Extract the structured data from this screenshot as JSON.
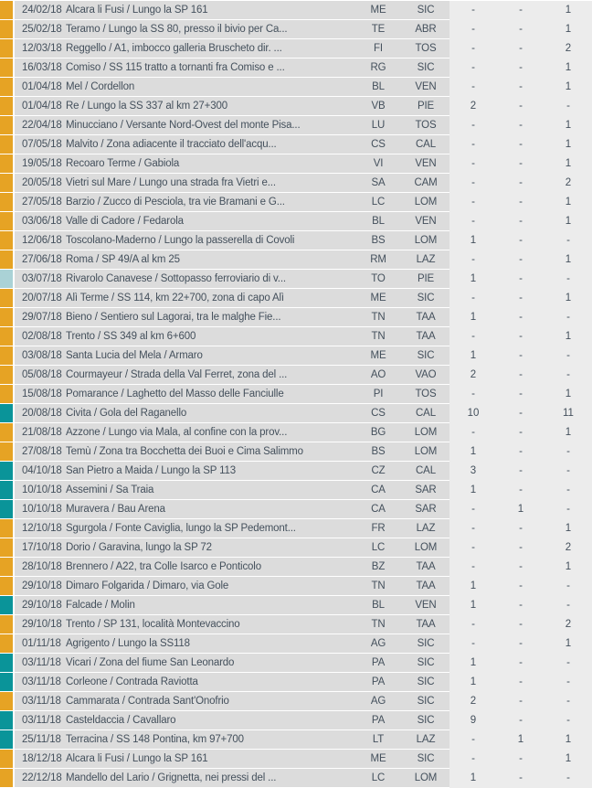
{
  "colors": {
    "marker_orange": "#E6A324",
    "marker_teal": "#0A9499",
    "marker_pale": "#AAD2D6",
    "row_bg": "#DCDCDC",
    "panel_bg": "#ECECEC",
    "text": "#44505C",
    "separator": "#FFFFFF"
  },
  "table": {
    "columns": [
      "date",
      "location",
      "province",
      "region",
      "value1",
      "value2",
      "value3"
    ],
    "rows": [
      {
        "date": "24/02/18",
        "location": "Alcara li Fusi / Lungo la SP 161",
        "province": "ME",
        "region": "SIC",
        "v1": "-",
        "v2": "-",
        "v3": "1",
        "marker": "orange"
      },
      {
        "date": "25/02/18",
        "location": "Teramo / Lungo la SS 80, presso il bivio per Ca...",
        "province": "TE",
        "region": "ABR",
        "v1": "-",
        "v2": "-",
        "v3": "1",
        "marker": "orange"
      },
      {
        "date": "12/03/18",
        "location": "Reggello / A1, imbocco galleria Bruscheto dir. ...",
        "province": "FI",
        "region": "TOS",
        "v1": "-",
        "v2": "-",
        "v3": "2",
        "marker": "orange"
      },
      {
        "date": "16/03/18",
        "location": "Comiso / SS 115 tratto a tornanti fra Comiso e ...",
        "province": "RG",
        "region": "SIC",
        "v1": "-",
        "v2": "-",
        "v3": "1",
        "marker": "orange"
      },
      {
        "date": "01/04/18",
        "location": "Mel / Cordellon",
        "province": "BL",
        "region": "VEN",
        "v1": "-",
        "v2": "-",
        "v3": "1",
        "marker": "orange"
      },
      {
        "date": "01/04/18",
        "location": "Re / Lungo la SS 337 al km 27+300",
        "province": "VB",
        "region": "PIE",
        "v1": "2",
        "v2": "-",
        "v3": "-",
        "marker": "orange"
      },
      {
        "date": "22/04/18",
        "location": "Minucciano / Versante Nord-Ovest del monte Pisa...",
        "province": "LU",
        "region": "TOS",
        "v1": "-",
        "v2": "-",
        "v3": "1",
        "marker": "orange"
      },
      {
        "date": "07/05/18",
        "location": "Malvito / Zona adiacente il tracciato dell'acqu...",
        "province": "CS",
        "region": "CAL",
        "v1": "-",
        "v2": "-",
        "v3": "1",
        "marker": "orange"
      },
      {
        "date": "19/05/18",
        "location": "Recoaro Terme / Gabiola",
        "province": "VI",
        "region": "VEN",
        "v1": "-",
        "v2": "-",
        "v3": "1",
        "marker": "orange"
      },
      {
        "date": "20/05/18",
        "location": "Vietri sul Mare / Lungo una strada fra Vietri e...",
        "province": "SA",
        "region": "CAM",
        "v1": "-",
        "v2": "-",
        "v3": "2",
        "marker": "orange"
      },
      {
        "date": "27/05/18",
        "location": "Barzio / Zucco di Pesciola, tra vie Bramani e G...",
        "province": "LC",
        "region": "LOM",
        "v1": "-",
        "v2": "-",
        "v3": "1",
        "marker": "orange"
      },
      {
        "date": "03/06/18",
        "location": "Valle di Cadore / Fedarola",
        "province": "BL",
        "region": "VEN",
        "v1": "-",
        "v2": "-",
        "v3": "1",
        "marker": "orange"
      },
      {
        "date": "12/06/18",
        "location": "Toscolano-Maderno / Lungo la passerella di Covoli",
        "province": "BS",
        "region": "LOM",
        "v1": "1",
        "v2": "-",
        "v3": "-",
        "marker": "orange"
      },
      {
        "date": "27/06/18",
        "location": "Roma / SP 49/A al km 25",
        "province": "RM",
        "region": "LAZ",
        "v1": "-",
        "v2": "-",
        "v3": "1",
        "marker": "orange"
      },
      {
        "date": "03/07/18",
        "location": "Rivarolo Canavese / Sottopasso ferroviario di v...",
        "province": "TO",
        "region": "PIE",
        "v1": "1",
        "v2": "-",
        "v3": "-",
        "marker": "pale"
      },
      {
        "date": "20/07/18",
        "location": "Alì Terme / SS 114, km 22+700, zona di capo Alì",
        "province": "ME",
        "region": "SIC",
        "v1": "-",
        "v2": "-",
        "v3": "1",
        "marker": "orange"
      },
      {
        "date": "29/07/18",
        "location": "Bieno / Sentiero sul Lagorai, tra le malghe Fie...",
        "province": "TN",
        "region": "TAA",
        "v1": "1",
        "v2": "-",
        "v3": "-",
        "marker": "orange"
      },
      {
        "date": "02/08/18",
        "location": "Trento / SS 349 al km 6+600",
        "province": "TN",
        "region": "TAA",
        "v1": "-",
        "v2": "-",
        "v3": "1",
        "marker": "orange"
      },
      {
        "date": "03/08/18",
        "location": "Santa Lucia del Mela / Armaro",
        "province": "ME",
        "region": "SIC",
        "v1": "1",
        "v2": "-",
        "v3": "-",
        "marker": "orange"
      },
      {
        "date": "05/08/18",
        "location": "Courmayeur / Strada della Val Ferret, zona del ...",
        "province": "AO",
        "region": "VAO",
        "v1": "2",
        "v2": "-",
        "v3": "-",
        "marker": "orange"
      },
      {
        "date": "15/08/18",
        "location": "Pomarance / Laghetto del Masso delle Fanciulle",
        "province": "PI",
        "region": "TOS",
        "v1": "-",
        "v2": "-",
        "v3": "1",
        "marker": "orange"
      },
      {
        "date": "20/08/18",
        "location": "Civita / Gola del Raganello",
        "province": "CS",
        "region": "CAL",
        "v1": "10",
        "v2": "-",
        "v3": "11",
        "marker": "teal"
      },
      {
        "date": "21/08/18",
        "location": "Azzone / Lungo via Mala, al confine con la prov...",
        "province": "BG",
        "region": "LOM",
        "v1": "-",
        "v2": "-",
        "v3": "1",
        "marker": "orange"
      },
      {
        "date": "27/08/18",
        "location": "Temù / Zona tra Bocchetta dei Buoi e Cima Salimmo",
        "province": "BS",
        "region": "LOM",
        "v1": "1",
        "v2": "-",
        "v3": "-",
        "marker": "orange"
      },
      {
        "date": "04/10/18",
        "location": "San Pietro a Maida / Lungo la SP 113",
        "province": "CZ",
        "region": "CAL",
        "v1": "3",
        "v2": "-",
        "v3": "-",
        "marker": "teal"
      },
      {
        "date": "10/10/18",
        "location": "Assemini / Sa Traia",
        "province": "CA",
        "region": "SAR",
        "v1": "1",
        "v2": "-",
        "v3": "-",
        "marker": "teal"
      },
      {
        "date": "10/10/18",
        "location": "Muravera / Bau Arena",
        "province": "CA",
        "region": "SAR",
        "v1": "-",
        "v2": "1",
        "v3": "-",
        "marker": "teal"
      },
      {
        "date": "12/10/18",
        "location": "Sgurgola / Fonte Caviglia, lungo la SP Pedemont...",
        "province": "FR",
        "region": "LAZ",
        "v1": "-",
        "v2": "-",
        "v3": "1",
        "marker": "orange"
      },
      {
        "date": "17/10/18",
        "location": "Dorio / Garavina, lungo la SP 72",
        "province": "LC",
        "region": "LOM",
        "v1": "-",
        "v2": "-",
        "v3": "2",
        "marker": "orange"
      },
      {
        "date": "28/10/18",
        "location": "Brennero / A22, tra Colle Isarco e Ponticolo",
        "province": "BZ",
        "region": "TAA",
        "v1": "-",
        "v2": "-",
        "v3": "1",
        "marker": "orange"
      },
      {
        "date": "29/10/18",
        "location": "Dimaro Folgarida / Dimaro, via Gole",
        "province": "TN",
        "region": "TAA",
        "v1": "1",
        "v2": "-",
        "v3": "-",
        "marker": "orange"
      },
      {
        "date": "29/10/18",
        "location": "Falcade / Molin",
        "province": "BL",
        "region": "VEN",
        "v1": "1",
        "v2": "-",
        "v3": "-",
        "marker": "teal"
      },
      {
        "date": "29/10/18",
        "location": "Trento / SP 131, località Montevaccino",
        "province": "TN",
        "region": "TAA",
        "v1": "-",
        "v2": "-",
        "v3": "2",
        "marker": "orange"
      },
      {
        "date": "01/11/18",
        "location": "Agrigento / Lungo la SS118",
        "province": "AG",
        "region": "SIC",
        "v1": "-",
        "v2": "-",
        "v3": "1",
        "marker": "orange"
      },
      {
        "date": "03/11/18",
        "location": "Vicari / Zona del fiume San Leonardo",
        "province": "PA",
        "region": "SIC",
        "v1": "1",
        "v2": "-",
        "v3": "-",
        "marker": "teal"
      },
      {
        "date": "03/11/18",
        "location": "Corleone / Contrada Raviotta",
        "province": "PA",
        "region": "SIC",
        "v1": "1",
        "v2": "-",
        "v3": "-",
        "marker": "teal"
      },
      {
        "date": "03/11/18",
        "location": "Cammarata / Contrada Sant'Onofrio",
        "province": "AG",
        "region": "SIC",
        "v1": "2",
        "v2": "-",
        "v3": "-",
        "marker": "orange"
      },
      {
        "date": "03/11/18",
        "location": "Casteldaccia / Cavallaro",
        "province": "PA",
        "region": "SIC",
        "v1": "9",
        "v2": "-",
        "v3": "-",
        "marker": "teal"
      },
      {
        "date": "25/11/18",
        "location": "Terracina / SS 148 Pontina, km 97+700",
        "province": "LT",
        "region": "LAZ",
        "v1": "-",
        "v2": "1",
        "v3": "1",
        "marker": "teal"
      },
      {
        "date": "18/12/18",
        "location": "Alcara li Fusi / Lungo la SP 161",
        "province": "ME",
        "region": "SIC",
        "v1": "-",
        "v2": "-",
        "v3": "1",
        "marker": "orange"
      },
      {
        "date": "22/12/18",
        "location": "Mandello del Lario / Grignetta, nei pressi del ...",
        "province": "LC",
        "region": "LOM",
        "v1": "1",
        "v2": "-",
        "v3": "-",
        "marker": "orange"
      }
    ]
  }
}
